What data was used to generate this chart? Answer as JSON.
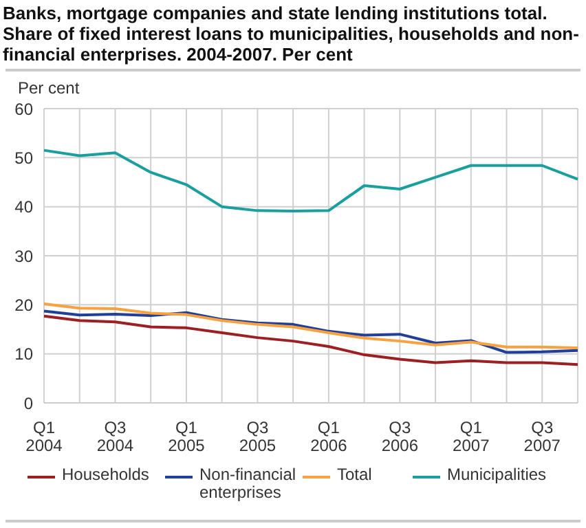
{
  "chart_data": {
    "type": "line",
    "title": "Banks, mortgage companies and state lending institutions total. Share of fixed interest loans to municipalities, households and non-financial enterprises. 2004-2007. Per cent",
    "ylabel": "Per cent",
    "categories": [
      "Q1 2004",
      null,
      "Q3 2004",
      null,
      "Q1 2005",
      null,
      "Q3 2005",
      null,
      "Q1 2006",
      null,
      "Q3 2006",
      null,
      "Q1 2007",
      null,
      "Q3 2007",
      null
    ],
    "series": [
      {
        "name": "Households",
        "color": "#9c1f24",
        "values": [
          17.7,
          16.8,
          16.5,
          15.5,
          15.3,
          14.3,
          13.3,
          12.6,
          11.5,
          9.8,
          8.9,
          8.2,
          8.6,
          8.2,
          8.2,
          7.8
        ]
      },
      {
        "name": "Non-financial enterprises",
        "color": "#1f3f99",
        "values": [
          18.7,
          17.9,
          18.1,
          17.8,
          18.4,
          17.0,
          16.3,
          16.0,
          14.6,
          13.8,
          14.0,
          12.2,
          12.7,
          10.3,
          10.4,
          10.7
        ]
      },
      {
        "name": "Total",
        "color": "#f7a141",
        "values": [
          20.2,
          19.3,
          19.2,
          18.3,
          18.0,
          16.8,
          16.0,
          15.5,
          14.3,
          13.2,
          12.6,
          11.8,
          12.4,
          11.4,
          11.4,
          11.2
        ]
      },
      {
        "name": "Municipalities",
        "color": "#1a9e9e",
        "values": [
          51.5,
          50.4,
          51.0,
          47.0,
          44.5,
          40.0,
          39.2,
          39.1,
          39.2,
          44.3,
          43.6,
          46.0,
          48.4,
          48.4,
          48.4,
          45.6
        ]
      }
    ],
    "ylim": [
      0,
      60
    ],
    "yticks": [
      0,
      10,
      20,
      30,
      40,
      50,
      60
    ],
    "grid": true,
    "legend": "bottom",
    "marker": "none",
    "line_style": "solid"
  }
}
